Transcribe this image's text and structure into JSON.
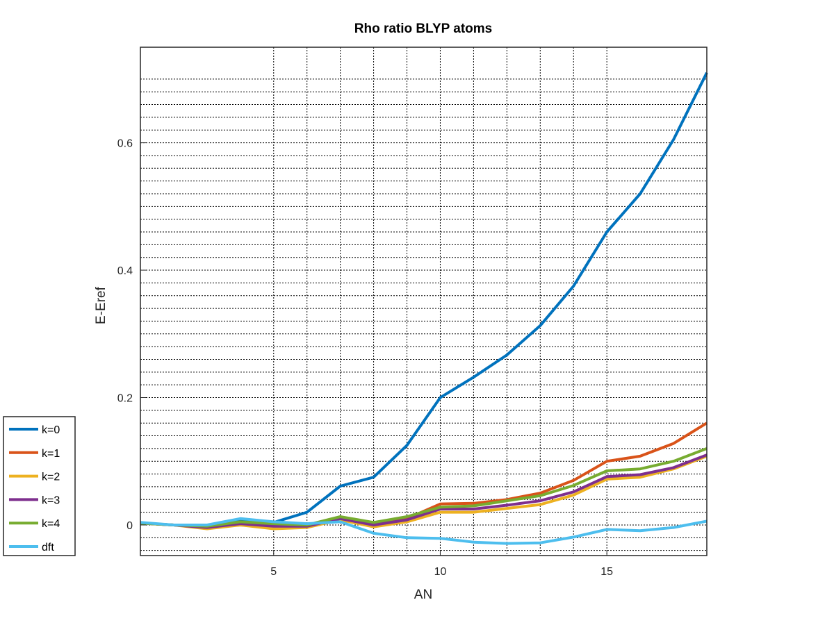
{
  "chart_data": {
    "type": "line",
    "title": "Rho ratio BLYP atoms",
    "xlabel": "AN",
    "ylabel": "E-Eref",
    "xlim": [
      1,
      18
    ],
    "ylim": [
      -0.048,
      0.75
    ],
    "xticks": [
      5,
      10,
      15
    ],
    "yticks": [
      0,
      0.2,
      0.4,
      0.6
    ],
    "x_grid_minor": [
      5,
      6,
      7,
      8,
      9,
      10,
      11,
      12,
      13,
      14,
      15
    ],
    "y_grid_minor": [
      -0.04,
      -0.02,
      0,
      0.02,
      0.04,
      0.06,
      0.08,
      0.1,
      0.12,
      0.14,
      0.16,
      0.18,
      0.2,
      0.22,
      0.24,
      0.26,
      0.28,
      0.3,
      0.32,
      0.34,
      0.36,
      0.38,
      0.4,
      0.42,
      0.44,
      0.46,
      0.48,
      0.5,
      0.52,
      0.54,
      0.56,
      0.58,
      0.6,
      0.62,
      0.64,
      0.66,
      0.68,
      0.7
    ],
    "grid": true,
    "legend_position": "outside-bottom-left",
    "x": [
      1,
      2,
      3,
      4,
      5,
      6,
      7,
      8,
      9,
      10,
      11,
      12,
      13,
      14,
      15,
      16,
      17,
      18
    ],
    "series": [
      {
        "name": "k=0",
        "color": "#0072BD",
        "values": [
          0.003,
          0.0,
          -0.002,
          0.006,
          0.004,
          0.02,
          0.061,
          0.075,
          0.125,
          0.2,
          0.232,
          0.267,
          0.313,
          0.375,
          0.46,
          0.52,
          0.605,
          0.71
        ]
      },
      {
        "name": "k=1",
        "color": "#D95319",
        "values": [
          0.003,
          0.0,
          -0.004,
          0.0,
          -0.004,
          -0.003,
          0.01,
          0.0,
          0.01,
          0.033,
          0.034,
          0.04,
          0.05,
          0.07,
          0.1,
          0.108,
          0.128,
          0.16
        ]
      },
      {
        "name": "k=2",
        "color": "#EDB120",
        "values": [
          0.003,
          0.0,
          -0.006,
          0.0,
          -0.006,
          -0.004,
          0.008,
          -0.003,
          0.005,
          0.02,
          0.02,
          0.026,
          0.032,
          0.047,
          0.072,
          0.075,
          0.088,
          0.108
        ]
      },
      {
        "name": "k=3",
        "color": "#7E2F8E",
        "values": [
          0.003,
          0.0,
          -0.004,
          0.002,
          -0.002,
          -0.002,
          0.01,
          0.0,
          0.008,
          0.025,
          0.025,
          0.031,
          0.038,
          0.052,
          0.076,
          0.079,
          0.09,
          0.11
        ]
      },
      {
        "name": "k=4",
        "color": "#77AC30",
        "values": [
          0.003,
          0.0,
          -0.002,
          0.005,
          0.002,
          0.0,
          0.013,
          0.004,
          0.013,
          0.028,
          0.03,
          0.038,
          0.046,
          0.062,
          0.085,
          0.088,
          0.1,
          0.12
        ]
      },
      {
        "name": "dft",
        "color": "#4DBEEE",
        "values": [
          0.004,
          0.0,
          0.0,
          0.01,
          0.005,
          0.002,
          0.005,
          -0.013,
          -0.02,
          -0.021,
          -0.027,
          -0.029,
          -0.028,
          -0.019,
          -0.007,
          -0.009,
          -0.004,
          0.006
        ]
      }
    ]
  }
}
